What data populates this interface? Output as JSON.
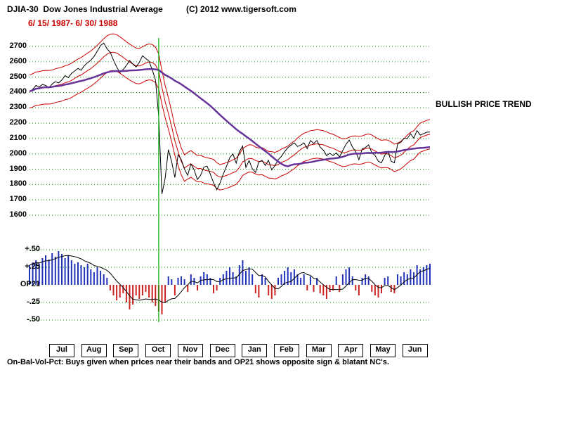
{
  "header": {
    "title": "DJIA-30  Dow Jones Industrial Average",
    "date_range": "6/ 15/ 1987- 6/ 30/ 1988",
    "copyright": "(C) 2012 www.tigersoft.com"
  },
  "annotations": {
    "trend": "BULLISH PRICE TREND",
    "footnote": "On-Bal-Vol-Pct: Buys given when prices near their bands and OP21 shows opposite sign & blatant NC's."
  },
  "colors": {
    "grid": "#00a000",
    "price_line": "#000000",
    "band_line": "#cc0000",
    "ma_line": "#663399",
    "event_line": "#00aa00",
    "bar_positive": "#2233bb",
    "bar_negative": "#cc2222",
    "date_text": "#cc0000"
  },
  "chart_data": {
    "type": "line",
    "title": "DJIA-30 Dow Jones Industrial Average",
    "period": "6/15/1987 - 6/30/1988",
    "grid": true,
    "y_ticks": [
      2700,
      2600,
      2500,
      2400,
      2300,
      2200,
      2100,
      2000,
      1900,
      1800,
      1700,
      1600
    ],
    "ylim": [
      1570,
      2770
    ],
    "months": [
      "Jul",
      "Aug",
      "Sep",
      "Oct",
      "Nov",
      "Dec",
      "Jan",
      "Feb",
      "Mar",
      "Apr",
      "May",
      "Jun"
    ],
    "event_index": 40,
    "price": [
      2407,
      2420,
      2446,
      2435,
      2452,
      2446,
      2430,
      2455,
      2470,
      2462,
      2481,
      2510,
      2497,
      2524,
      2540,
      2557,
      2545,
      2575,
      2594,
      2610,
      2635,
      2669,
      2706,
      2722,
      2685,
      2662,
      2610,
      2566,
      2530,
      2549,
      2576,
      2608,
      2585,
      2566,
      2596,
      2639,
      2621,
      2604,
      2548,
      2482,
      2246,
      1738,
      1841,
      2027,
      1950,
      1846,
      1994,
      1963,
      1900,
      1860,
      1935,
      1895,
      1833,
      1860,
      1914,
      1920,
      1867,
      1812,
      1766,
      1810,
      1867,
      1919,
      1975,
      1999,
      1939,
      2015,
      2051,
      1911,
      1956,
      1903,
      1879,
      1946,
      1958,
      1924,
      1958,
      1895,
      1923,
      1962,
      1983,
      2014,
      2040,
      2057,
      2071,
      2048,
      2057,
      2071,
      2034,
      2087,
      2067,
      2087,
      2044,
      2024,
      1988,
      2004,
      1988,
      2006,
      1980,
      2022,
      2062,
      2090,
      2044,
      2015,
      1962,
      2032,
      2041,
      2058,
      2007,
      1990,
      1952,
      1941,
      1990,
      2016,
      1952,
      1941,
      2065,
      2075,
      2102,
      2099,
      2131,
      2102,
      2152,
      2122,
      2131,
      2141,
      2142
    ],
    "bands": {
      "mid_window": 8,
      "ma_window": 40,
      "band_pct": 0.045
    },
    "op21": {
      "label": "OP21",
      "ticks": [
        {
          "label": "+.50",
          "value": 0.5
        },
        {
          "label": "+.25",
          "value": 0.25
        },
        {
          "label": "OP21",
          "value": 0
        },
        {
          "label": "-.25",
          "value": -0.25
        },
        {
          "label": "-.50",
          "value": -0.5
        }
      ],
      "ylim": [
        -0.5,
        0.5
      ],
      "line_window": 8,
      "values": [
        0.28,
        0.32,
        0.35,
        0.3,
        0.38,
        0.42,
        0.36,
        0.45,
        0.4,
        0.48,
        0.44,
        0.38,
        0.42,
        0.35,
        0.3,
        0.32,
        0.28,
        0.25,
        0.3,
        0.22,
        0.18,
        0.25,
        0.2,
        0.15,
        0.1,
        -0.08,
        -0.15,
        -0.22,
        -0.18,
        -0.12,
        -0.25,
        -0.35,
        -0.28,
        -0.15,
        -0.2,
        -0.15,
        -0.1,
        -0.18,
        -0.25,
        -0.3,
        -0.38,
        -0.42,
        -0.25,
        0.12,
        0.08,
        -0.15,
        0.1,
        0.12,
        0.08,
        -0.1,
        0.15,
        0.1,
        -0.08,
        0.12,
        0.18,
        0.15,
        0.1,
        -0.12,
        -0.08,
        0.1,
        0.15,
        0.2,
        0.25,
        0.18,
        0.12,
        0.28,
        0.35,
        0.2,
        0.25,
        0.15,
        -0.12,
        -0.18,
        0.15,
        0.1,
        -0.15,
        -0.2,
        -0.15,
        0.1,
        0.15,
        0.2,
        0.25,
        0.18,
        0.22,
        0.15,
        0.1,
        0.15,
        -0.08,
        0.12,
        -0.1,
        0.1,
        -0.12,
        -0.15,
        -0.2,
        -0.1,
        -0.08,
        0.12,
        -0.1,
        0.15,
        0.22,
        0.25,
        0.12,
        -0.08,
        -0.15,
        0.1,
        0.15,
        0.12,
        -0.1,
        -0.15,
        -0.18,
        -0.12,
        0.1,
        0.12,
        -0.1,
        -0.12,
        0.15,
        0.12,
        0.18,
        0.15,
        0.22,
        0.18,
        0.28,
        0.22,
        0.25,
        0.28,
        0.3
      ]
    }
  }
}
